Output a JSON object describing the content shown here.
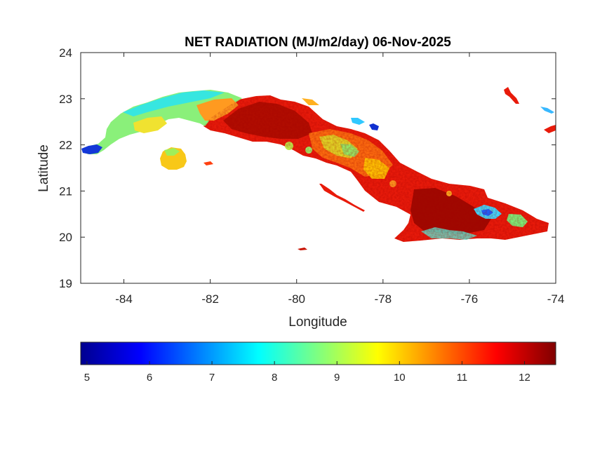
{
  "chart_data": {
    "type": "heatmap",
    "title": "NET RADIATION (MJ/m2/day) 06-Nov-2025",
    "xlabel": "Longitude",
    "ylabel": "Latitude",
    "xlim": [
      -85,
      -74
    ],
    "ylim": [
      19,
      24
    ],
    "x_ticks": [
      "-84",
      "-82",
      "-80",
      "-78",
      "-76",
      "-74"
    ],
    "y_ticks": [
      "19",
      "20",
      "21",
      "22",
      "23",
      "24"
    ],
    "colormap": "jet",
    "colorbar": {
      "orientation": "horizontal",
      "placement": "bottom",
      "range": [
        4.9,
        12.5
      ],
      "ticks": [
        "5",
        "6",
        "7",
        "8",
        "9",
        "10",
        "11",
        "12"
      ]
    },
    "regions": [
      {
        "name": "western tip",
        "value": 5.5
      },
      {
        "name": "western region",
        "value": 8.3
      },
      {
        "name": "Isla de la Juventud",
        "value": 9.8
      },
      {
        "name": "central-west",
        "value": 11.8
      },
      {
        "name": "central",
        "value": 11.0
      },
      {
        "name": "central-east",
        "value": 11.2
      },
      {
        "name": "eastern region",
        "value": 11.9
      },
      {
        "name": "eastern highlands",
        "value": 7.2
      },
      {
        "name": "northern cays",
        "value": 5.6
      }
    ],
    "grid": false
  }
}
